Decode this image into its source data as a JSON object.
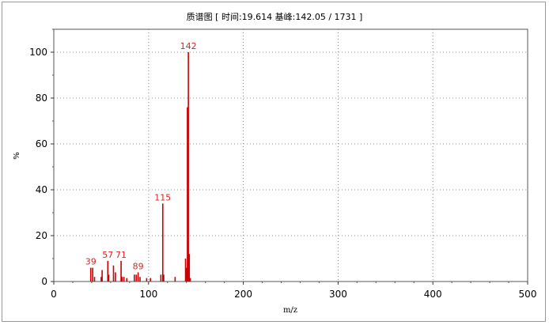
{
  "chart_data": {
    "type": "bar",
    "title": "质谱图 [ 时间:19.614 基峰:142.05 / 1731 ]",
    "xlabel": "m/z",
    "ylabel": "%",
    "xlim": [
      0,
      500
    ],
    "ylim": [
      0,
      110
    ],
    "xticks": [
      0,
      100,
      200,
      300,
      400,
      500
    ],
    "yticks": [
      0,
      20,
      40,
      60,
      80,
      100
    ],
    "grid": true,
    "bar_color": "#cc0000",
    "label_color": "#dd2222",
    "peaks": [
      {
        "mz": 39,
        "intensity": 6
      },
      {
        "mz": 41,
        "intensity": 6
      },
      {
        "mz": 43,
        "intensity": 2
      },
      {
        "mz": 50,
        "intensity": 2
      },
      {
        "mz": 51,
        "intensity": 5
      },
      {
        "mz": 57,
        "intensity": 9
      },
      {
        "mz": 58,
        "intensity": 3
      },
      {
        "mz": 63,
        "intensity": 7
      },
      {
        "mz": 65,
        "intensity": 4
      },
      {
        "mz": 71,
        "intensity": 9
      },
      {
        "mz": 72,
        "intensity": 2
      },
      {
        "mz": 74,
        "intensity": 2
      },
      {
        "mz": 77,
        "intensity": 1.5
      },
      {
        "mz": 85,
        "intensity": 3
      },
      {
        "mz": 87,
        "intensity": 3
      },
      {
        "mz": 89,
        "intensity": 4
      },
      {
        "mz": 91,
        "intensity": 2
      },
      {
        "mz": 98,
        "intensity": 1.5
      },
      {
        "mz": 102,
        "intensity": 1.5
      },
      {
        "mz": 113,
        "intensity": 3
      },
      {
        "mz": 115,
        "intensity": 34
      },
      {
        "mz": 116,
        "intensity": 3
      },
      {
        "mz": 128,
        "intensity": 2
      },
      {
        "mz": 139,
        "intensity": 10
      },
      {
        "mz": 140,
        "intensity": 6
      },
      {
        "mz": 141,
        "intensity": 76
      },
      {
        "mz": 142,
        "intensity": 100
      },
      {
        "mz": 143,
        "intensity": 12
      },
      {
        "mz": 144,
        "intensity": 1.5
      }
    ],
    "peak_labels": [
      {
        "mz": 39,
        "label": "39",
        "intensity": 6
      },
      {
        "mz": 57,
        "label": "57",
        "intensity": 9
      },
      {
        "mz": 71,
        "label": "71",
        "intensity": 9
      },
      {
        "mz": 89,
        "label": "89",
        "intensity": 4
      },
      {
        "mz": 115,
        "label": "115",
        "intensity": 34
      },
      {
        "mz": 142,
        "label": "142",
        "intensity": 100
      }
    ]
  }
}
